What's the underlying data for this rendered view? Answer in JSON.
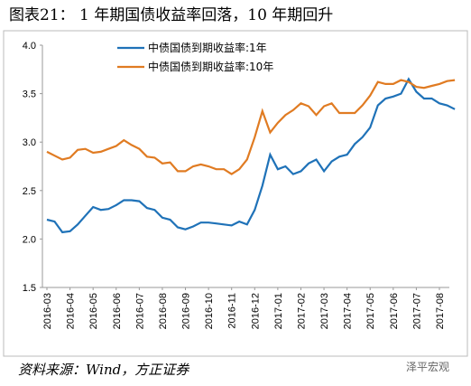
{
  "title": "图表21：  1 年期国债收益率回落，10 年期回升",
  "source": "资料来源：Wind，方正证券",
  "watermark": "泽平宏观",
  "chart_data": {
    "type": "line",
    "categories": [
      "2016-03",
      null,
      null,
      "2016-04",
      null,
      null,
      "2016-05",
      null,
      null,
      "2016-06",
      null,
      null,
      "2016-07",
      null,
      null,
      "2016-08",
      null,
      null,
      "2016-09",
      null,
      null,
      "2016-10",
      null,
      null,
      "2016-11",
      null,
      null,
      "2016-12",
      null,
      null,
      "2017-01",
      null,
      null,
      "2017-02",
      null,
      null,
      "2017-03",
      null,
      null,
      "2017-04",
      null,
      null,
      "2017-05",
      null,
      null,
      "2017-06",
      null,
      null,
      "2017-07",
      null,
      null,
      "2017-08",
      null,
      null
    ],
    "series": [
      {
        "name": "中债国债到期收益率:1年",
        "color": "#1f72b8",
        "values": [
          2.2,
          2.18,
          2.07,
          2.08,
          2.15,
          2.24,
          2.33,
          2.3,
          2.31,
          2.35,
          2.4,
          2.4,
          2.39,
          2.32,
          2.3,
          2.22,
          2.2,
          2.12,
          2.1,
          2.13,
          2.17,
          2.17,
          2.16,
          2.15,
          2.14,
          2.18,
          2.15,
          2.3,
          2.55,
          2.87,
          2.72,
          2.75,
          2.67,
          2.7,
          2.78,
          2.82,
          2.7,
          2.8,
          2.85,
          2.87,
          2.98,
          3.05,
          3.15,
          3.38,
          3.45,
          3.47,
          3.5,
          3.65,
          3.52,
          3.45,
          3.45,
          3.4,
          3.38,
          3.34
        ]
      },
      {
        "name": "中债国债到期收益率:10年",
        "color": "#e07b22",
        "values": [
          2.9,
          2.86,
          2.82,
          2.84,
          2.92,
          2.93,
          2.89,
          2.9,
          2.93,
          2.96,
          3.02,
          2.97,
          2.93,
          2.85,
          2.84,
          2.78,
          2.79,
          2.7,
          2.7,
          2.75,
          2.77,
          2.75,
          2.72,
          2.72,
          2.67,
          2.72,
          2.82,
          3.05,
          3.32,
          3.1,
          3.2,
          3.28,
          3.33,
          3.4,
          3.37,
          3.28,
          3.37,
          3.4,
          3.3,
          3.3,
          3.3,
          3.38,
          3.48,
          3.62,
          3.6,
          3.6,
          3.64,
          3.62,
          3.57,
          3.56,
          3.58,
          3.6,
          3.63,
          3.64
        ]
      }
    ],
    "ylim": [
      1.5,
      4.0
    ],
    "yticks": [
      {
        "value": 1.5,
        "label": "1.5"
      },
      {
        "value": 2,
        "label": "2.0"
      },
      {
        "value": 2.5,
        "label": "2.5"
      },
      {
        "value": 3,
        "label": "3.0"
      },
      {
        "value": 3.5,
        "label": "3.5"
      },
      {
        "value": 4,
        "label": "4.0"
      }
    ],
    "legend": "top-left",
    "grid": false
  }
}
